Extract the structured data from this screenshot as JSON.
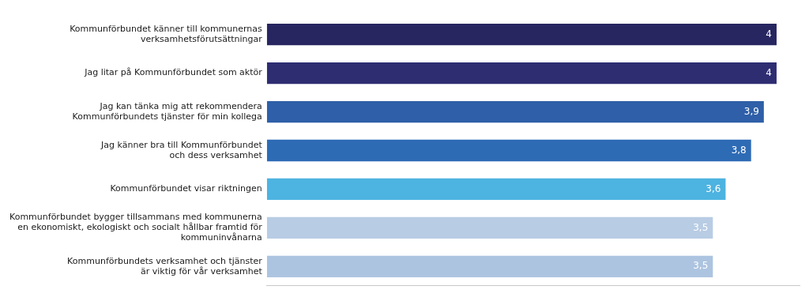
{
  "chart_data": {
    "type": "bar",
    "orientation": "horizontal",
    "categories": [
      "Kommunförbundets verksamhet och tjänster\när viktig för vår verksamhet",
      "Kommunförbundet bygger tillsammans med kommunerna\nen ekonomiskt, ekologiskt och socialt hållbar framtid för\nkommuninvånarna",
      "Kommunförbundet visar riktningen",
      "Jag känner bra till Kommunförbundet\noch dess verksamhet",
      "Jag kan tänka mig att rekommendera\nKommunförbundets tjänster för min kollega",
      "Jag litar på Kommunförbundet som aktör",
      "Kommunförbundet känner till kommunernas\nverksamhetsförutsättningar"
    ],
    "values": [
      3.5,
      3.5,
      3.6,
      3.8,
      3.9,
      4.0,
      4.0
    ],
    "value_labels": [
      "3,5",
      "3,5",
      "3,6",
      "3,8",
      "3,9",
      "4",
      "4"
    ],
    "colors": [
      "#adc4e0",
      "#b8cce4",
      "#4db3e0",
      "#2e6bb5",
      "#2e5fa8",
      "#2e2d72",
      "#272660"
    ],
    "xlim": [
      0,
      4.18
    ],
    "grid": false,
    "data_labels": true,
    "tick_labels": "y"
  }
}
